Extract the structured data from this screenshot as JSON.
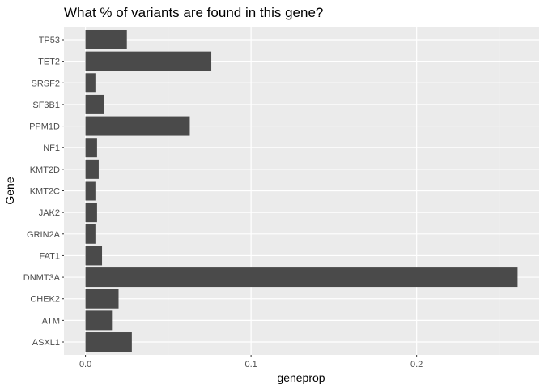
{
  "chart_data": {
    "type": "bar",
    "orientation": "horizontal",
    "title": "What % of variants are found in this gene?",
    "xlabel": "geneprop",
    "ylabel": "Gene",
    "categories": [
      "ASXL1",
      "ATM",
      "CHEK2",
      "DNMT3A",
      "FAT1",
      "GRIN2A",
      "JAK2",
      "KMT2C",
      "KMT2D",
      "NF1",
      "PPM1D",
      "SF3B1",
      "SRSF2",
      "TET2",
      "TP53"
    ],
    "values": [
      0.028,
      0.016,
      0.02,
      0.261,
      0.01,
      0.006,
      0.007,
      0.006,
      0.008,
      0.007,
      0.063,
      0.011,
      0.006,
      0.076,
      0.025
    ],
    "xlim": [
      -0.013,
      0.274
    ],
    "xticks": [
      0.0,
      0.1,
      0.2
    ],
    "xtick_labels": [
      "0.0",
      "0.1",
      "0.2"
    ],
    "grid": true,
    "colors": {
      "bar": "#4a4a4a",
      "panel": "#ebebeb",
      "grid_major": "#ffffff",
      "grid_minor": "#f5f5f5"
    }
  }
}
